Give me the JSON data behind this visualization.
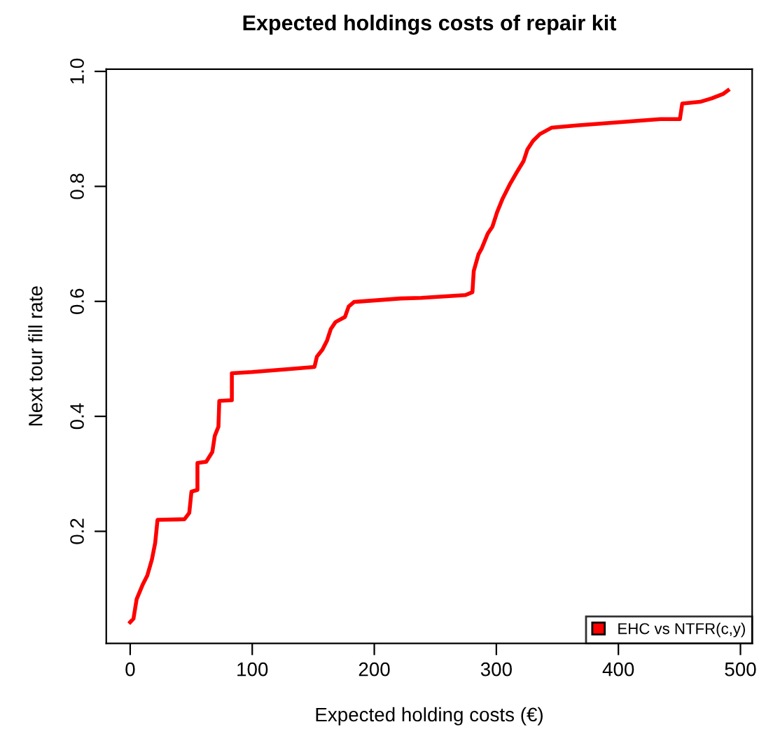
{
  "chart_data": {
    "type": "line",
    "title": "Expected holdings costs of repair kit",
    "xlabel": "Expected holding costs (€)",
    "ylabel": "Next tour fill rate",
    "xlim": [
      -19.6,
      509.6
    ],
    "ylim": [
      0.005,
      1.004
    ],
    "xticks": [
      0,
      100,
      200,
      300,
      400,
      500
    ],
    "yticks": [
      0.2,
      0.4,
      0.6,
      0.8,
      {
        "value": 1,
        "label": "1.0"
      }
    ],
    "grid": false,
    "legend": "bottom right",
    "marker": "none",
    "line_style": "solid",
    "series": [
      {
        "name": "EHC vs NTFR(c,y)",
        "color": "#ff0000",
        "x": [
          0,
          2.7,
          5.3,
          10.2,
          14,
          17.8,
          20.5,
          22.4,
          44.5,
          48.4,
          50.2,
          55.1,
          55.1,
          62.3,
          67.3,
          69.3,
          72.3,
          73,
          83.3,
          83.3,
          99.7,
          133.9,
          151,
          153,
          157.5,
          161.3,
          164.4,
          168.2,
          176,
          179,
          183.4,
          202.4,
          221.5,
          238.6,
          274.7,
          280.4,
          281.5,
          285.4,
          288,
          293,
          296.8,
          300.6,
          305.2,
          310.9,
          316.6,
          322.3,
          325.4,
          330,
          335.7,
          345.2,
          366,
          396.5,
          434.4,
          450.4,
          452.3,
          466.9,
          476.4,
          486,
          489.8
        ],
        "values": [
          0.042,
          0.048,
          0.082,
          0.107,
          0.123,
          0.151,
          0.18,
          0.22,
          0.221,
          0.232,
          0.269,
          0.272,
          0.319,
          0.321,
          0.338,
          0.366,
          0.382,
          0.427,
          0.428,
          0.475,
          0.477,
          0.483,
          0.486,
          0.504,
          0.516,
          0.532,
          0.552,
          0.564,
          0.573,
          0.591,
          0.599,
          0.602,
          0.605,
          0.606,
          0.611,
          0.616,
          0.653,
          0.682,
          0.692,
          0.718,
          0.73,
          0.755,
          0.779,
          0.803,
          0.824,
          0.844,
          0.864,
          0.879,
          0.891,
          0.902,
          0.906,
          0.911,
          0.917,
          0.917,
          0.944,
          0.947,
          0.953,
          0.961,
          0.967
        ]
      }
    ]
  }
}
